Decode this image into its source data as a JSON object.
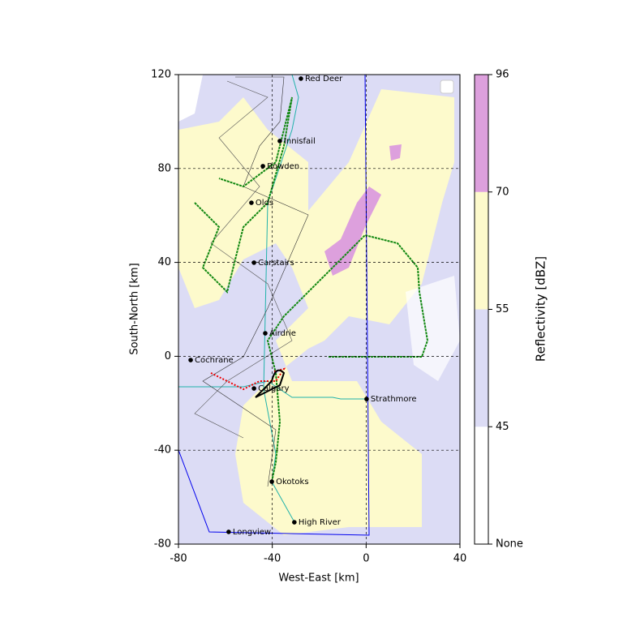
{
  "chart_data": {
    "type": "scatter",
    "labels": [
      "Red Deer",
      "Innisfail",
      "Bowden",
      "Olds",
      "Carstairs",
      "Airdrie",
      "Cochrane",
      "Calgary",
      "Strathmore",
      "Okotoks",
      "High River",
      "Longview"
    ],
    "x": [
      -27.8,
      -36.8,
      -44.0,
      -48.9,
      -47.8,
      -43.0,
      -74.8,
      -47.8,
      0.2,
      -40.2,
      -30.6,
      -58.6
    ],
    "values": [
      118.3,
      91.7,
      81.0,
      65.4,
      39.9,
      9.8,
      -1.6,
      -13.7,
      -18.2,
      -53.4,
      -70.7,
      -74.8
    ],
    "color": "#000000",
    "xlabel": "West-East [km]",
    "ylabel": "South-North [km]",
    "xlim": [
      -80,
      40
    ],
    "xticks": [
      -80,
      -40,
      0,
      40
    ],
    "ylim": [
      -80,
      120
    ],
    "yticks": [
      -80,
      -40,
      0,
      40,
      80,
      120
    ],
    "grid": true,
    "colorbar": {
      "label": "Reflectivity [dBZ]",
      "levels": [
        "None",
        45,
        55,
        70,
        96
      ],
      "colors": [
        "#ffffff",
        "#dcdcf5",
        "#fdfacc",
        "#dda0dd"
      ]
    }
  }
}
